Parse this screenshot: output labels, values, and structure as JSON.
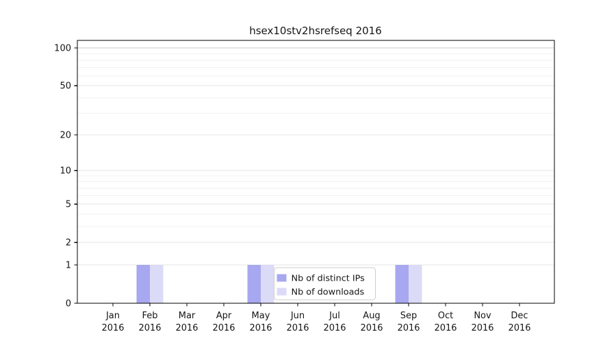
{
  "chart_data": {
    "type": "bar",
    "title": "hsex10stv2hsrefseq 2016",
    "categories": [
      "Jan 2016",
      "Feb 2016",
      "Mar 2016",
      "Apr 2016",
      "May 2016",
      "Jun 2016",
      "Jul 2016",
      "Aug 2016",
      "Sep 2016",
      "Oct 2016",
      "Nov 2016",
      "Dec 2016"
    ],
    "x_tick_month": [
      "Jan",
      "Feb",
      "Mar",
      "Apr",
      "May",
      "Jun",
      "Jul",
      "Aug",
      "Sep",
      "Oct",
      "Nov",
      "Dec"
    ],
    "x_tick_year": "2016",
    "series": [
      {
        "name": "Nb of distinct IPs",
        "color": "#a8a8f0",
        "values": [
          0,
          1,
          0,
          0,
          1,
          0,
          0,
          0,
          1,
          0,
          0,
          0
        ]
      },
      {
        "name": "Nb of downloads",
        "color": "#dbdbf8",
        "values": [
          0,
          1,
          0,
          0,
          1,
          0,
          0,
          0,
          1,
          0,
          0,
          0
        ]
      }
    ],
    "y_axis": {
      "scale": "symlog log(1+v)",
      "ticks": [
        0,
        1,
        2,
        5,
        10,
        20,
        50,
        100
      ],
      "minor_gridlines": [
        3,
        4,
        6,
        7,
        8,
        9,
        30,
        40,
        60,
        70,
        80,
        90
      ],
      "top_tick_value": 100
    },
    "legend": {
      "entries": [
        "Nb of distinct IPs",
        "Nb of downloads"
      ],
      "position": "lower center"
    },
    "grid": "horizontal only",
    "colors": {
      "grid_minor": "#f2f2f2",
      "grid_major": "#e6e6e6",
      "grid_top": "#c9c9c9",
      "axis": "#000000",
      "legend_border": "#cccccc"
    }
  }
}
